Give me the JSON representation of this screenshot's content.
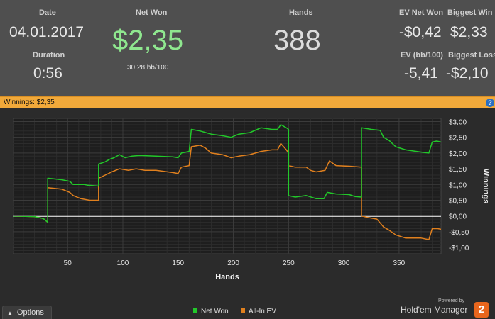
{
  "stats": {
    "date_label": "Date",
    "date_value": "04.01.2017",
    "duration_label": "Duration",
    "duration_value": "0:56",
    "net_won_label": "Net Won",
    "net_won_value": "$2,35",
    "net_won_bb": "30,28 bb/100",
    "hands_label": "Hands",
    "hands_value": "388",
    "ev_net_won_label": "EV Net Won",
    "ev_net_won_value": "-$0,42",
    "biggest_win_label": "Biggest Win",
    "biggest_win_value": "$2,33",
    "ev_bb_label": "EV (bb/100)",
    "ev_bb_value": "-5,41",
    "biggest_loss_label": "Biggest Loss",
    "biggest_loss_value": "-$2,10"
  },
  "banner": {
    "text": "Winnings:  $2,35",
    "help_glyph": "?"
  },
  "footer": {
    "options_label": "Options",
    "powered_by": "Powered by",
    "brand": "Hold'em Manager",
    "brand_badge": "2"
  },
  "colors": {
    "net_won": "#22c82a",
    "all_in_ev": "#e0801e",
    "banner": "#f1a93a",
    "plot_bg": "#1e1e1e",
    "zero_line": "#ffffff"
  },
  "chart_data": {
    "type": "line",
    "xlabel": "Hands",
    "ylabel": "Winnings",
    "xlim": [
      1,
      388
    ],
    "ylim": [
      -1.2,
      3.1
    ],
    "x_ticks": [
      50,
      100,
      150,
      200,
      250,
      300,
      350
    ],
    "y_ticks": [
      {
        "v": 3.0,
        "label": "$3,00"
      },
      {
        "v": 2.5,
        "label": "$2,50"
      },
      {
        "v": 2.0,
        "label": "$2,00"
      },
      {
        "v": 1.5,
        "label": "$1,50"
      },
      {
        "v": 1.0,
        "label": "$1,00"
      },
      {
        "v": 0.5,
        "label": "$0,50"
      },
      {
        "v": 0.0,
        "label": "$0,00"
      },
      {
        "v": -0.5,
        "label": "-$0,50"
      },
      {
        "v": -1.0,
        "label": "-$1,00"
      }
    ],
    "grid": true,
    "legend": "bottom-center",
    "series": [
      {
        "name": "Net Won",
        "points": [
          [
            1,
            0
          ],
          [
            20,
            -0.02
          ],
          [
            28,
            -0.08
          ],
          [
            32,
            -0.2
          ],
          [
            32,
            1.2
          ],
          [
            45,
            1.15
          ],
          [
            52,
            1.1
          ],
          [
            55,
            1.0
          ],
          [
            65,
            1.0
          ],
          [
            68,
            0.98
          ],
          [
            78,
            0.95
          ],
          [
            78,
            1.65
          ],
          [
            84,
            1.72
          ],
          [
            88,
            1.8
          ],
          [
            92,
            1.85
          ],
          [
            97,
            1.95
          ],
          [
            102,
            1.85
          ],
          [
            108,
            1.9
          ],
          [
            115,
            1.92
          ],
          [
            130,
            1.9
          ],
          [
            145,
            1.88
          ],
          [
            150,
            1.85
          ],
          [
            153,
            2.0
          ],
          [
            160,
            2.05
          ],
          [
            162,
            2.75
          ],
          [
            170,
            2.7
          ],
          [
            175,
            2.65
          ],
          [
            180,
            2.6
          ],
          [
            190,
            2.55
          ],
          [
            198,
            2.5
          ],
          [
            205,
            2.6
          ],
          [
            215,
            2.65
          ],
          [
            225,
            2.8
          ],
          [
            235,
            2.75
          ],
          [
            240,
            2.75
          ],
          [
            243,
            2.9
          ],
          [
            248,
            2.8
          ],
          [
            250,
            2.75
          ],
          [
            250,
            0.65
          ],
          [
            256,
            0.6
          ],
          [
            266,
            0.65
          ],
          [
            275,
            0.55
          ],
          [
            282,
            0.55
          ],
          [
            285,
            0.75
          ],
          [
            293,
            0.7
          ],
          [
            305,
            0.68
          ],
          [
            310,
            0.62
          ],
          [
            316,
            0.6
          ],
          [
            316,
            2.8
          ],
          [
            325,
            2.75
          ],
          [
            333,
            2.72
          ],
          [
            336,
            2.5
          ],
          [
            341,
            2.4
          ],
          [
            347,
            2.2
          ],
          [
            356,
            2.1
          ],
          [
            372,
            2.02
          ],
          [
            377,
            2.0
          ],
          [
            380,
            2.35
          ],
          [
            384,
            2.38
          ],
          [
            388,
            2.35
          ]
        ]
      },
      {
        "name": "All-In EV",
        "points": [
          [
            1,
            0
          ],
          [
            20,
            -0.02
          ],
          [
            28,
            -0.08
          ],
          [
            32,
            -0.2
          ],
          [
            32,
            0.9
          ],
          [
            45,
            0.85
          ],
          [
            52,
            0.75
          ],
          [
            55,
            0.65
          ],
          [
            62,
            0.55
          ],
          [
            70,
            0.5
          ],
          [
            78,
            0.5
          ],
          [
            78,
            1.2
          ],
          [
            84,
            1.3
          ],
          [
            90,
            1.4
          ],
          [
            97,
            1.5
          ],
          [
            105,
            1.45
          ],
          [
            112,
            1.5
          ],
          [
            120,
            1.45
          ],
          [
            130,
            1.45
          ],
          [
            145,
            1.38
          ],
          [
            150,
            1.35
          ],
          [
            153,
            1.55
          ],
          [
            160,
            1.6
          ],
          [
            162,
            2.2
          ],
          [
            170,
            2.25
          ],
          [
            175,
            2.15
          ],
          [
            180,
            2.0
          ],
          [
            190,
            1.95
          ],
          [
            198,
            1.85
          ],
          [
            205,
            1.9
          ],
          [
            215,
            1.95
          ],
          [
            225,
            2.05
          ],
          [
            235,
            2.1
          ],
          [
            240,
            2.1
          ],
          [
            243,
            2.3
          ],
          [
            248,
            2.1
          ],
          [
            250,
            2.0
          ],
          [
            250,
            1.6
          ],
          [
            256,
            1.55
          ],
          [
            266,
            1.55
          ],
          [
            270,
            1.45
          ],
          [
            275,
            1.4
          ],
          [
            283,
            1.45
          ],
          [
            287,
            1.75
          ],
          [
            293,
            1.6
          ],
          [
            305,
            1.58
          ],
          [
            316,
            1.55
          ],
          [
            316,
            0
          ],
          [
            322,
            -0.05
          ],
          [
            330,
            -0.1
          ],
          [
            336,
            -0.35
          ],
          [
            341,
            -0.45
          ],
          [
            347,
            -0.6
          ],
          [
            356,
            -0.7
          ],
          [
            370,
            -0.7
          ],
          [
            377,
            -0.75
          ],
          [
            380,
            -0.4
          ],
          [
            385,
            -0.4
          ],
          [
            388,
            -0.42
          ]
        ]
      }
    ]
  }
}
